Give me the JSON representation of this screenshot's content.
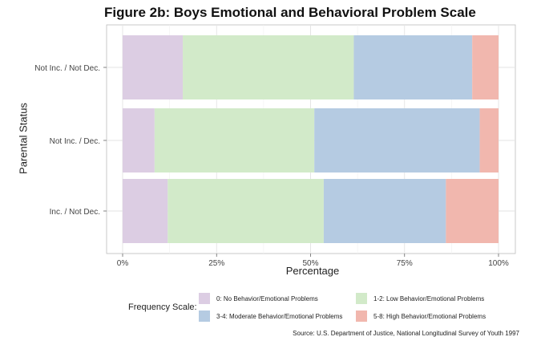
{
  "chart_data": {
    "type": "bar",
    "orientation": "horizontal",
    "stacked": true,
    "title": "Figure 2b: Boys Emotional and Behavioral Problem Scale",
    "xlabel": "Percentage",
    "ylabel": "Parental Status",
    "xlim": [
      0,
      100
    ],
    "xticks": [
      "0%",
      "25%",
      "50%",
      "75%",
      "100%"
    ],
    "categories": [
      "Not Inc. / Not Dec.",
      "Not Inc. / Dec.",
      "Inc. / Not Dec."
    ],
    "series": [
      {
        "name": "0: No Behavior/Emotional Problems",
        "color": "#dccde3",
        "values": [
          16,
          8.5,
          12
        ]
      },
      {
        "name": "1-2: Low Behavior/Emotional Problems",
        "color": "#d2eac9",
        "values": [
          45.5,
          42.5,
          41.5
        ]
      },
      {
        "name": "3-4: Moderate Behavior/Emotional Problems",
        "color": "#b5cbe2",
        "values": [
          31.5,
          44,
          32.5
        ]
      },
      {
        "name": "5-8: High Behavior/Emotional Problems",
        "color": "#f1b7ae",
        "values": [
          7,
          5,
          14
        ]
      }
    ],
    "legend_title": "Frequency Scale:",
    "legend_position": "bottom",
    "grid": true
  },
  "source": "Source: U.S. Department of Justice, National Longitudinal Survey of Youth 1997"
}
